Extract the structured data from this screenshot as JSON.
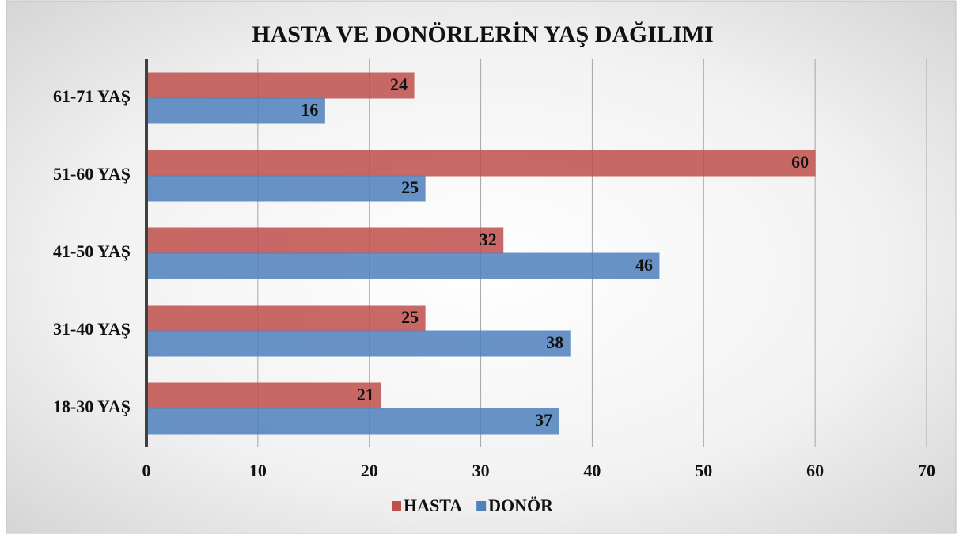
{
  "chart_data": {
    "type": "bar",
    "orientation": "horizontal",
    "title": "HASTA VE DONÖRLERİN YAŞ DAĞILIMI",
    "categories": [
      "18-30 YAŞ",
      "31-40 YAŞ",
      "41-50 YAŞ",
      "51-60 YAŞ",
      "61-71 YAŞ"
    ],
    "series": [
      {
        "name": "HASTA",
        "color": "#c0504d",
        "values": [
          21,
          25,
          32,
          60,
          24
        ]
      },
      {
        "name": "DONÖR",
        "color": "#4f81bd",
        "values": [
          37,
          38,
          46,
          25,
          16
        ]
      }
    ],
    "xlim": [
      0,
      70
    ],
    "xticks": [
      0,
      10,
      20,
      30,
      40,
      50,
      60,
      70
    ],
    "grid": true,
    "legend": "bottom"
  }
}
